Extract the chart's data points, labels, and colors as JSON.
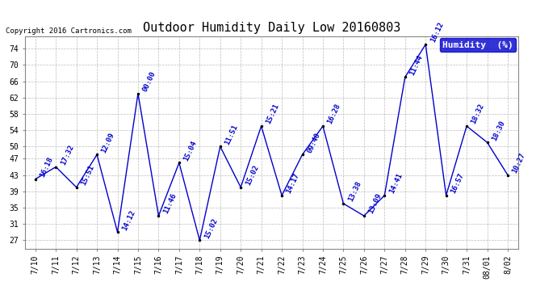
{
  "title": "Outdoor Humidity Daily Low 20160803",
  "copyright": "Copyright 2016 Cartronics.com",
  "legend_label": "Humidity  (%)",
  "x_labels": [
    "7/10",
    "7/11",
    "7/12",
    "7/13",
    "7/14",
    "7/15",
    "7/16",
    "7/17",
    "7/18",
    "7/19",
    "7/20",
    "7/21",
    "7/22",
    "7/23",
    "7/24",
    "7/25",
    "7/26",
    "7/27",
    "7/28",
    "7/29",
    "7/30",
    "7/31",
    "08/01",
    "8/02"
  ],
  "y_values": [
    42,
    45,
    40,
    48,
    29,
    63,
    33,
    46,
    27,
    50,
    40,
    55,
    38,
    48,
    55,
    36,
    33,
    38,
    67,
    75,
    38,
    55,
    51,
    43
  ],
  "point_labels": [
    "16:18",
    "17:32",
    "15:51",
    "12:09",
    "14:12",
    "00:00",
    "11:46",
    "15:04",
    "15:02",
    "11:51",
    "15:02",
    "15:21",
    "14:17",
    "09:40",
    "16:28",
    "13:38",
    "13:09",
    "14:41",
    "11:44",
    "16:12",
    "16:57",
    "18:32",
    "18:30",
    "10:27"
  ],
  "line_color": "#0000cc",
  "marker_color": "#000000",
  "label_color": "#0000cc",
  "background_color": "#ffffff",
  "grid_color": "#aaaaaa",
  "ylim": [
    25,
    77
  ],
  "yticks": [
    27,
    31,
    35,
    39,
    43,
    47,
    50,
    54,
    58,
    62,
    66,
    70,
    74
  ],
  "title_fontsize": 11,
  "label_fontsize": 6.5,
  "tick_fontsize": 7,
  "legend_fontsize": 8
}
